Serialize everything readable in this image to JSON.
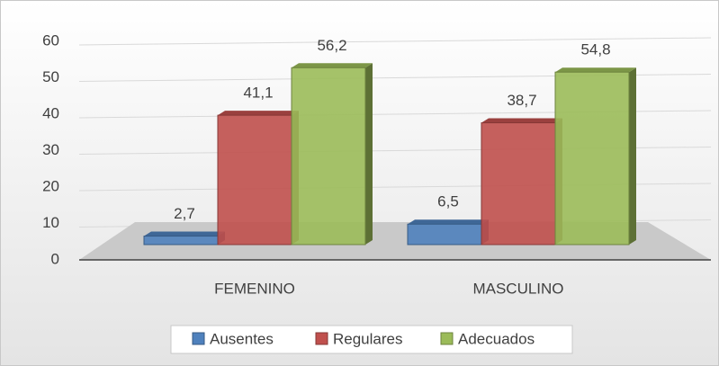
{
  "chart_data": {
    "type": "bar3d",
    "categories": [
      "FEMENINO",
      "MASCULINO"
    ],
    "series": [
      {
        "name": "Ausentes",
        "color": "#4f81bd",
        "values": [
          2.7,
          6.5
        ],
        "value_labels": [
          "2,7",
          "6,5"
        ]
      },
      {
        "name": "Regulares",
        "color": "#c0504d",
        "values": [
          41.1,
          38.7
        ],
        "value_labels": [
          "41,1",
          "38,7"
        ]
      },
      {
        "name": "Adecuados",
        "color": "#9bbb59",
        "values": [
          56.2,
          54.8
        ],
        "value_labels": [
          "56,2",
          "54,8"
        ]
      }
    ],
    "ylim": [
      0,
      60
    ],
    "yticks": [
      0,
      10,
      20,
      30,
      40,
      50,
      60
    ],
    "grid": true,
    "legend": "bottom"
  }
}
